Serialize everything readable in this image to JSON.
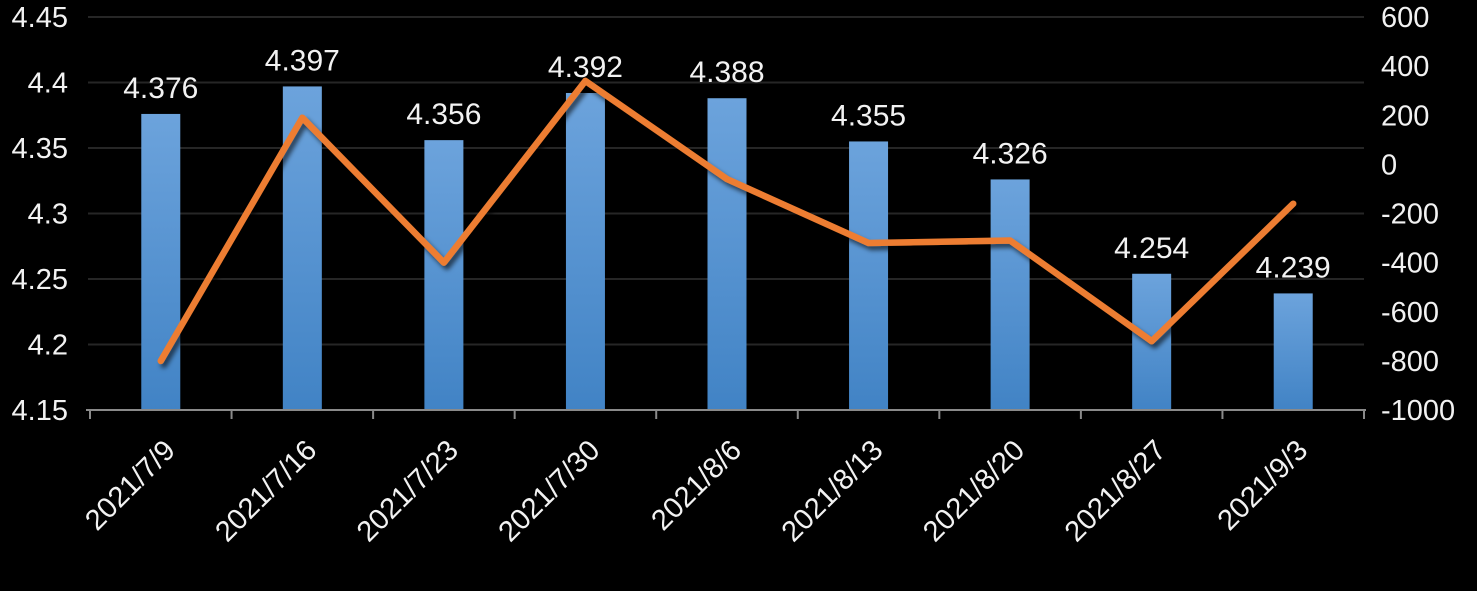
{
  "chart_data": {
    "type": "combo",
    "title": "",
    "legend": "none",
    "gridlines": "horizontal",
    "background_color": "#000000",
    "text_color": "#f2f2f2",
    "grid_color": "#262626",
    "axis_line_color": "#8a8a8a",
    "categories": [
      "2021/7/9",
      "2021/7/16",
      "2021/7/23",
      "2021/7/30",
      "2021/8/6",
      "2021/8/13",
      "2021/8/20",
      "2021/8/27",
      "2021/9/3"
    ],
    "series": [
      {
        "name": "bar-series",
        "type": "bar",
        "axis": "left",
        "color_top": "#6ca3dc",
        "color_bottom": "#4183c5",
        "values": [
          4.376,
          4.397,
          4.356,
          4.392,
          4.388,
          4.355,
          4.326,
          4.254,
          4.239
        ],
        "data_labels": [
          "4.376",
          "4.397",
          "4.356",
          "4.392",
          "4.388",
          "4.355",
          "4.326",
          "4.254",
          "4.239"
        ]
      },
      {
        "name": "line-series",
        "type": "line",
        "axis": "right",
        "color": "#ed7d31",
        "values": [
          -800,
          190,
          -400,
          340,
          -60,
          -320,
          -310,
          -720,
          -160
        ]
      }
    ],
    "left_axis": {
      "min": 4.15,
      "max": 4.45,
      "step": 0.05,
      "tick_labels": [
        "4.45",
        "4.4",
        "4.35",
        "4.3",
        "4.25",
        "4.2",
        "4.15"
      ]
    },
    "right_axis": {
      "min": -1000,
      "max": 600,
      "step": 200,
      "tick_labels": [
        "600",
        "400",
        "200",
        "0",
        "-200",
        "-400",
        "-600",
        "-800",
        "-1000"
      ]
    }
  }
}
